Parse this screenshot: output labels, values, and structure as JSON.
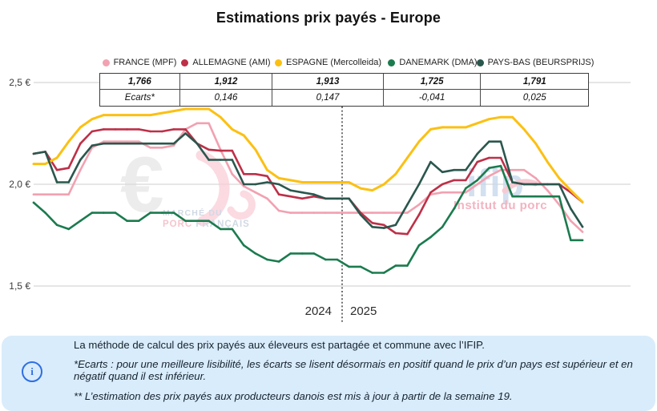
{
  "title": "Estimations prix payés - Europe",
  "chart_data": {
    "type": "line",
    "title": "Estimations prix payés - Europe",
    "unit": "€/kg",
    "n_points": 48,
    "x_axis": {
      "visible_labels": [
        "2024",
        "2025"
      ],
      "periods": [
        {
          "label": "2024",
          "n_weeks": 27
        },
        {
          "label": "2025",
          "n_weeks": 21
        }
      ],
      "year_boundary_index": 27,
      "divider_style": "dotted-vertical-line"
    },
    "y_axis": {
      "tick_labels": [
        "2,5 €",
        "2,0 €",
        "1,5 €"
      ],
      "grid_values": [
        2.5,
        2.0,
        1.5
      ],
      "min": 1.4,
      "max": 2.55,
      "grid": "on"
    },
    "legend_position": "top",
    "series": [
      {
        "name": "FRANCE (MPF)",
        "color": "#f2a1b1",
        "latest_label": "1,766",
        "ecart_label": "Ecarts*",
        "values": [
          1.95,
          1.95,
          1.95,
          1.95,
          2.07,
          2.18,
          2.21,
          2.21,
          2.21,
          2.21,
          2.18,
          2.18,
          2.19,
          2.27,
          2.3,
          2.3,
          2.17,
          2.05,
          1.99,
          1.96,
          1.93,
          1.87,
          1.86,
          1.86,
          1.86,
          1.86,
          1.86,
          1.86,
          1.86,
          1.86,
          1.86,
          1.86,
          1.86,
          1.9,
          1.95,
          1.96,
          1.96,
          1.96,
          2.0,
          2.04,
          2.07,
          2.07,
          2.07,
          2.03,
          1.97,
          1.9,
          1.82,
          1.766
        ]
      },
      {
        "name": "ALLEMAGNE (AMI)",
        "color": "#bd3048",
        "latest_label": "1,912",
        "ecart_label": "0,146",
        "values": [
          2.15,
          2.16,
          2.07,
          2.08,
          2.2,
          2.26,
          2.27,
          2.27,
          2.27,
          2.27,
          2.26,
          2.26,
          2.27,
          2.27,
          2.2,
          2.17,
          2.165,
          2.165,
          2.05,
          2.05,
          2.04,
          1.95,
          1.94,
          1.93,
          1.94,
          1.93,
          1.93,
          1.93,
          1.86,
          1.81,
          1.8,
          1.76,
          1.755,
          1.85,
          1.96,
          2.0,
          2.02,
          2.02,
          2.11,
          2.13,
          2.13,
          2.01,
          2.0,
          2.0,
          2.0,
          2.0,
          1.96,
          1.912
        ]
      },
      {
        "name": "ESPAGNE (Mercolleida)",
        "color": "#fcc013",
        "latest_label": "1,913",
        "ecart_label": "0,147",
        "values": [
          2.1,
          2.1,
          2.13,
          2.21,
          2.28,
          2.32,
          2.34,
          2.34,
          2.34,
          2.34,
          2.34,
          2.35,
          2.36,
          2.37,
          2.37,
          2.37,
          2.33,
          2.27,
          2.24,
          2.17,
          2.07,
          2.03,
          2.02,
          2.01,
          2.01,
          2.01,
          2.01,
          2.01,
          1.98,
          1.97,
          2.0,
          2.05,
          2.13,
          2.21,
          2.27,
          2.28,
          2.28,
          2.28,
          2.3,
          2.32,
          2.33,
          2.33,
          2.27,
          2.2,
          2.11,
          2.03,
          1.97,
          1.913
        ]
      },
      {
        "name": "DANEMARK (DMA)",
        "color": "#1b7b4e",
        "latest_label": "1,725",
        "ecart_label": "-0,041",
        "values": [
          1.91,
          1.86,
          1.8,
          1.78,
          1.82,
          1.86,
          1.86,
          1.86,
          1.82,
          1.82,
          1.86,
          1.86,
          1.86,
          1.82,
          1.82,
          1.82,
          1.78,
          1.78,
          1.7,
          1.66,
          1.63,
          1.62,
          1.66,
          1.66,
          1.66,
          1.63,
          1.63,
          1.595,
          1.595,
          1.565,
          1.565,
          1.6,
          1.6,
          1.7,
          1.74,
          1.79,
          1.88,
          1.98,
          2.02,
          2.08,
          2.09,
          1.94,
          1.94,
          1.94,
          1.94,
          1.94,
          1.725,
          1.725
        ]
      },
      {
        "name": "PAYS-BAS (BEURSPRIJS)",
        "color": "#2a574d",
        "latest_label": "1,791",
        "ecart_label": "0,025",
        "values": [
          2.15,
          2.16,
          2.01,
          2.01,
          2.12,
          2.19,
          2.2,
          2.2,
          2.2,
          2.2,
          2.2,
          2.2,
          2.2,
          2.25,
          2.2,
          2.12,
          2.12,
          2.12,
          2.0,
          2.0,
          2.01,
          2.0,
          1.97,
          1.96,
          1.95,
          1.93,
          1.93,
          1.93,
          1.85,
          1.79,
          1.785,
          1.8,
          1.9,
          2.0,
          2.11,
          2.06,
          2.07,
          2.07,
          2.15,
          2.21,
          2.21,
          2.01,
          2.0,
          2.0,
          2.0,
          2.0,
          1.88,
          1.791
        ]
      }
    ]
  },
  "table": {
    "values_row": [
      "1,766",
      "1,912",
      "1,913",
      "1,725",
      "1,791"
    ],
    "ecarts_row": [
      "Ecarts*",
      "0,146",
      "0,147",
      "-0,041",
      "0,025"
    ]
  },
  "watermarks": {
    "mpf": {
      "symbol": "€",
      "line1": "MARCHÉ DU",
      "line2_accent": "PORC",
      "line2_rest": " FRANÇAIS",
      "symbol_color": "#d9d9d9",
      "accent_color": "#f5bac5",
      "text_color": "#c9d3e0"
    },
    "ifip": {
      "name": "ifip",
      "subtitle": "Institut du porc",
      "name_color": "#c5d8eb",
      "subtitle_color": "#f2abba",
      "accent_color": "#f6c5cf"
    }
  },
  "footer": {
    "info_icon": "i",
    "line1": "La méthode de calcul des prix payés aux éleveurs est partagée et commune avec l’IFIP.",
    "line2": "*Ecarts : pour une meilleure lisibilité, les écarts se lisent désormais en positif quand le prix d’un pays est supérieur et en négatif quand il est inférieur.",
    "line3": "** L’estimation des prix payés aux producteurs danois est mis à jour à partir de la semaine 19.",
    "box_color": "#d9ecfb",
    "icon_color": "#2e6ee3"
  }
}
